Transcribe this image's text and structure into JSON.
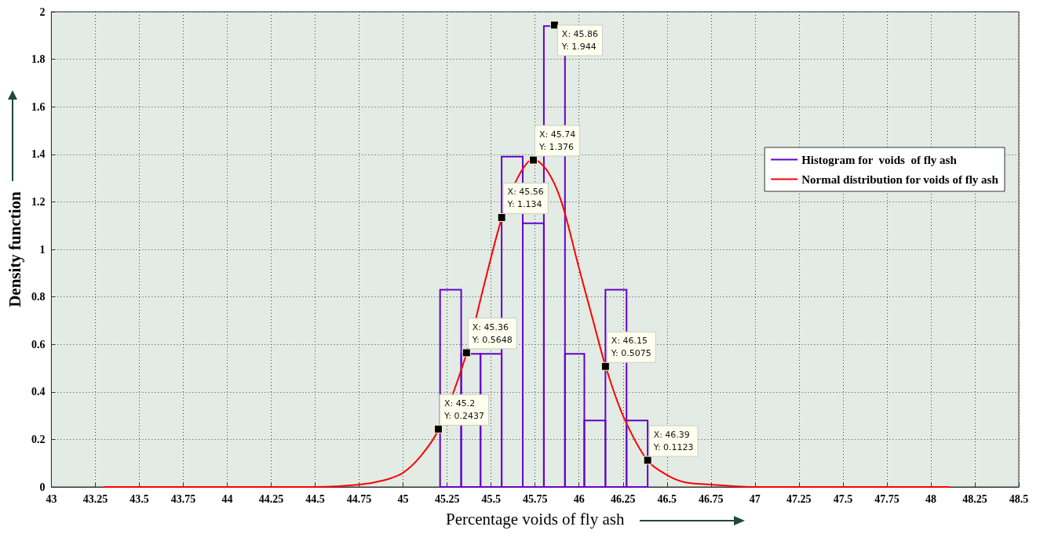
{
  "chart_data": {
    "type": "histogram",
    "xlabel": "Percentage voids of fly ash",
    "ylabel": "Density function",
    "xlim": [
      43,
      48.5
    ],
    "xticks": [
      43,
      43.25,
      43.5,
      43.75,
      44,
      44.25,
      44.5,
      44.75,
      45,
      45.25,
      45.5,
      45.75,
      46,
      46.25,
      46.5,
      46.75,
      47,
      47.25,
      47.5,
      47.75,
      48,
      48.25,
      48.5
    ],
    "ylim": [
      0,
      2
    ],
    "yticks": [
      0,
      0.2,
      0.4,
      0.6,
      0.8,
      1,
      1.2,
      1.4,
      1.6,
      1.8,
      2
    ],
    "grid": true,
    "legend": "top right",
    "series": [
      {
        "name": "Histogram for  voids  of fly ash",
        "color": "#6600cc",
        "bins": [
          45.21,
          45.33,
          45.44,
          45.56,
          45.68,
          45.8,
          45.92,
          46.03,
          46.15,
          46.27,
          46.39
        ],
        "values": [
          0.83,
          0.56,
          0.56,
          1.39,
          1.11,
          1.94,
          0.56,
          0.28,
          0.83,
          0.28
        ]
      },
      {
        "type": "line",
        "name": "Normal distribution for voids of fly ash",
        "color": "#ff0000",
        "x": [
          43.3,
          44,
          44.5,
          44.75,
          44.9,
          45,
          45.1,
          45.2,
          45.36,
          45.46,
          45.56,
          45.65,
          45.74,
          45.82,
          45.9,
          46,
          46.08,
          46.15,
          46.25,
          46.39,
          46.5,
          46.6,
          46.75,
          47,
          48.1
        ],
        "values": [
          0,
          0,
          0,
          0.01,
          0.03,
          0.06,
          0.13,
          0.24,
          0.56,
          0.85,
          1.13,
          1.3,
          1.38,
          1.33,
          1.2,
          0.92,
          0.7,
          0.51,
          0.3,
          0.11,
          0.05,
          0.02,
          0.01,
          0,
          0
        ]
      }
    ],
    "annotations": [
      {
        "text": "X: 45.2\nY: 0.2437",
        "x": 45.2,
        "y": 0.2437
      },
      {
        "text": "X: 45.36\nY: 0.5648",
        "x": 45.36,
        "y": 0.5648
      },
      {
        "text": "X: 45.56\nY: 1.134",
        "x": 45.56,
        "y": 1.134
      },
      {
        "text": "X: 45.74\nY: 1.376",
        "x": 45.74,
        "y": 1.376
      },
      {
        "text": "X: 45.86\nY: 1.944",
        "x": 45.86,
        "y": 1.944
      },
      {
        "text": "X: 46.15\nY: 0.5075",
        "x": 46.15,
        "y": 0.5075
      },
      {
        "text": "X: 46.39\nY: 0.1123",
        "x": 46.39,
        "y": 0.1123
      }
    ]
  }
}
